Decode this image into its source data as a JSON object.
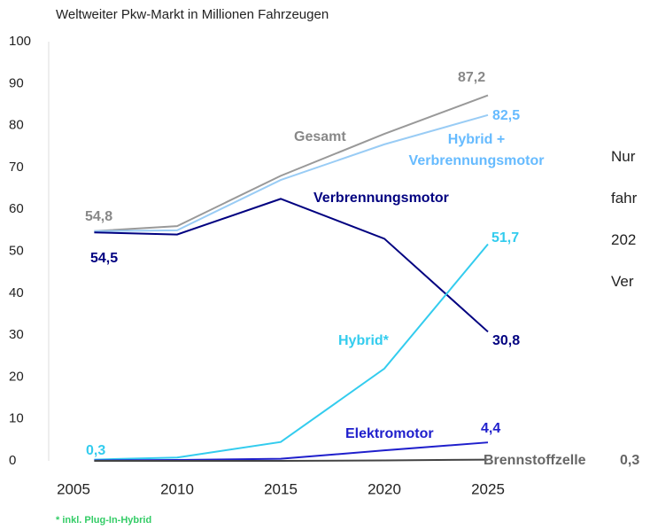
{
  "chart_data": {
    "type": "line",
    "title": "Weltweiter Pkw-Markt in Millionen Fahrzeugen",
    "x": [
      2006,
      2010,
      2015,
      2020,
      2025
    ],
    "xlim": [
      2005,
      2025
    ],
    "xticks": [
      2005,
      2010,
      2015,
      2020,
      2025
    ],
    "ylim": [
      0,
      100
    ],
    "yticks": [
      0,
      10,
      20,
      30,
      40,
      50,
      60,
      70,
      80,
      90,
      100
    ],
    "series": [
      {
        "name": "Gesamt",
        "color": "#999999",
        "values": [
          54.8,
          56,
          68,
          78,
          87.2
        ],
        "value_labels": [
          "54,8",
          null,
          null,
          null,
          "87,2"
        ]
      },
      {
        "name": "Hybrid + Verbrennungsmotor",
        "color": "#99ccf5",
        "values": [
          54.8,
          55,
          67,
          75.5,
          82.5
        ],
        "value_labels": [
          null,
          null,
          null,
          null,
          "82,5"
        ]
      },
      {
        "name": "Verbrennungsmotor",
        "color": "#000080",
        "values": [
          54.5,
          54,
          62.5,
          53,
          30.8
        ],
        "value_labels": [
          "54,5",
          null,
          null,
          null,
          "30,8"
        ]
      },
      {
        "name": "Hybrid*",
        "color": "#33ccee",
        "values": [
          0.3,
          0.8,
          4.5,
          22,
          51.7
        ],
        "value_labels": [
          "0,3",
          null,
          null,
          null,
          "51,7"
        ]
      },
      {
        "name": "Elektromotor",
        "color": "#1f1fcc",
        "values": [
          0.1,
          0.2,
          0.5,
          2.5,
          4.4
        ],
        "value_labels": [
          null,
          null,
          null,
          null,
          "4,4"
        ]
      },
      {
        "name": "Brennstoffzelle",
        "color": "#444444",
        "values": [
          0,
          0,
          0,
          0.1,
          0.3
        ],
        "value_labels": [
          null,
          null,
          null,
          null,
          "0,3"
        ]
      }
    ],
    "footnote": "* inkl. Plug-In-Hybrid",
    "side_text": [
      "Nur",
      "fahr",
      "202",
      "Ver"
    ]
  }
}
